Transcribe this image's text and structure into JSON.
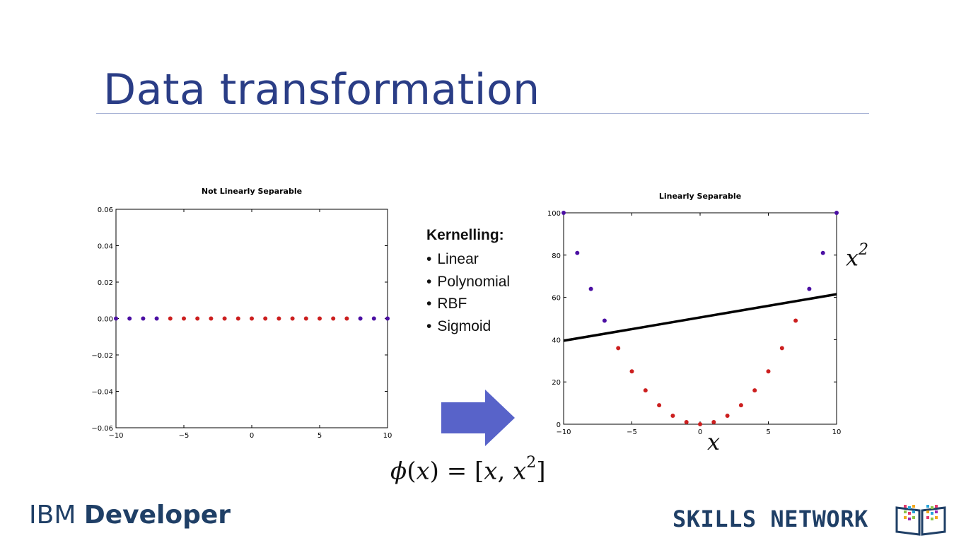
{
  "slide": {
    "title": "Data transformation",
    "kernel": {
      "heading": "Kernelling:",
      "items": [
        "Linear",
        "Polynomial",
        "RBF",
        "Sigmoid"
      ]
    },
    "formula": {
      "phi": "ϕ",
      "open": "(",
      "x": "x",
      "middle": ") = [",
      "x2": "x",
      "sup": "2",
      "close": "]"
    },
    "axis_labels": {
      "y_base": "x",
      "y_sup": "2",
      "x": "x"
    },
    "brand": {
      "ibm_light": "IBM ",
      "ibm_bold": "Developer",
      "skills": "SKILLS NETWORK"
    },
    "colors": {
      "title": "#2a3d86",
      "arrow": "#5863c9",
      "class_a": "#4b0fa3",
      "class_b": "#cc1f1f",
      "brand": "#1f3f66"
    },
    "icons": [
      "right-arrow-icon",
      "skills-network-logo-icon"
    ]
  },
  "chart_data": [
    {
      "type": "scatter",
      "title": "Not Linearly Separable",
      "xlim": [
        -10,
        10
      ],
      "ylim": [
        -0.06,
        0.06
      ],
      "xticks": [
        -10,
        -5,
        0,
        5,
        10
      ],
      "yticks": [
        0.06,
        0.04,
        0.02,
        0.0,
        -0.02,
        -0.04,
        -0.06
      ],
      "xtick_labels": [
        "−10",
        "−5",
        "0",
        "5",
        "10"
      ],
      "ytick_labels": [
        "0.06",
        "0.04",
        "0.02",
        "0.00",
        "−0.02",
        "−0.04",
        "−0.06"
      ],
      "series": [
        {
          "color": "#4b0fa3",
          "x": [
            -10,
            -9,
            -8,
            -7,
            8,
            9,
            10
          ],
          "y": [
            0,
            0,
            0,
            0,
            0,
            0,
            0
          ]
        },
        {
          "color": "#cc1f1f",
          "x": [
            -6,
            -5,
            -4,
            -3,
            -2,
            -1,
            0,
            1,
            2,
            3,
            4,
            5,
            6,
            7
          ],
          "y": [
            0,
            0,
            0,
            0,
            0,
            0,
            0,
            0,
            0,
            0,
            0,
            0,
            0,
            0
          ]
        }
      ]
    },
    {
      "type": "scatter",
      "title": "Linearly Separable",
      "xlim": [
        -10,
        10
      ],
      "ylim": [
        0,
        100
      ],
      "xticks": [
        -10,
        -5,
        0,
        5,
        10
      ],
      "yticks": [
        100,
        80,
        60,
        40,
        20,
        0
      ],
      "xtick_labels": [
        "−10",
        "−5",
        "0",
        "5",
        "10"
      ],
      "ytick_labels": [
        "100",
        "80",
        "60",
        "40",
        "20",
        "0"
      ],
      "series": [
        {
          "color": "#4b0fa3",
          "x": [
            -10,
            -9,
            -8,
            -7,
            8,
            9,
            10
          ],
          "y": [
            100,
            81,
            64,
            49,
            64,
            81,
            100
          ]
        },
        {
          "color": "#cc1f1f",
          "x": [
            -6,
            -5,
            -4,
            -3,
            -2,
            -1,
            0,
            1,
            2,
            3,
            4,
            5,
            6,
            7
          ],
          "y": [
            36,
            25,
            16,
            9,
            4,
            1,
            0,
            1,
            4,
            9,
            16,
            25,
            36,
            49
          ]
        }
      ],
      "line": {
        "color": "#000000",
        "x": [
          -10,
          10
        ],
        "y": [
          39.5,
          61.5
        ]
      }
    }
  ]
}
